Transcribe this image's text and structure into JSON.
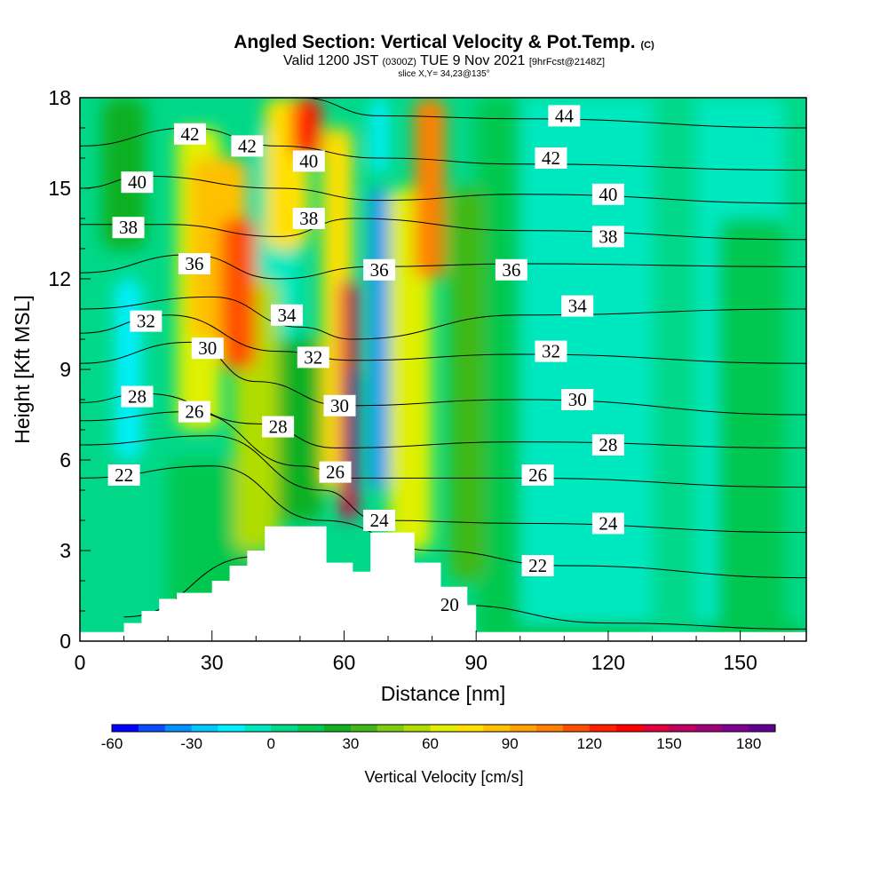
{
  "header": {
    "title": "Angled Section: Vertical Velocity & Pot.Temp.",
    "title_mark": "(C)",
    "valid_prefix": "Valid 1200 JST",
    "valid_utc": "(0300Z)",
    "valid_date": "TUE 9 Nov 2021",
    "forecast_tag": "[9hrFcst@2148Z]",
    "slice": "slice X,Y= 34,23@135°"
  },
  "chart_data": {
    "type": "heatmap",
    "title": "Angled Section: Vertical Velocity & Pot.Temp.",
    "xlabel": "Distance [nm]",
    "ylabel": "Height [Kft MSL]",
    "xlim": [
      0,
      165
    ],
    "ylim": [
      0,
      18
    ],
    "xticks": [
      0,
      30,
      60,
      90,
      120,
      150
    ],
    "yticks": [
      0,
      3,
      6,
      9,
      12,
      15,
      18
    ],
    "grid": false,
    "colorbar": {
      "label": "Vertical Velocity [cm/s]",
      "min": -60,
      "max": 190,
      "step": 10,
      "tick_values": [
        -60,
        -30,
        0,
        30,
        60,
        90,
        120,
        150,
        180
      ],
      "colors": [
        "#0000ff",
        "#0a4cff",
        "#0090ff",
        "#00c8ff",
        "#00f0ff",
        "#00e8c0",
        "#00d888",
        "#00c850",
        "#10b020",
        "#40b818",
        "#80cc10",
        "#b0dc00",
        "#e0f000",
        "#ffe000",
        "#ffc000",
        "#ffa000",
        "#ff8000",
        "#ff5000",
        "#ff2000",
        "#ff0000",
        "#e00040",
        "#c00060",
        "#a00078",
        "#800090",
        "#600090"
      ]
    },
    "velocity_cells": [
      {
        "x": [
          8,
          14
        ],
        "y": [
          6,
          12
        ],
        "value": -20
      },
      {
        "x": [
          40,
          50
        ],
        "y": [
          10,
          17
        ],
        "value": -10
      },
      {
        "x": [
          66,
          70
        ],
        "y": [
          5,
          15
        ],
        "value": -35
      },
      {
        "x": [
          66,
          70
        ],
        "y": [
          15.5,
          18
        ],
        "value": -20
      },
      {
        "x": [
          100,
          160
        ],
        "y": [
          0,
          18
        ],
        "value": -5
      },
      {
        "x": [
          90,
          165
        ],
        "y": [
          0,
          0.6
        ],
        "value": 10
      },
      {
        "x": [
          130,
          140
        ],
        "y": [
          0,
          18
        ],
        "value": 5
      },
      {
        "x": [
          145,
          160
        ],
        "y": [
          0,
          14
        ],
        "value": 10
      },
      {
        "x": [
          5,
          15
        ],
        "y": [
          13,
          18
        ],
        "value": 20
      },
      {
        "x": [
          20,
          40
        ],
        "y": [
          0,
          6
        ],
        "value": 15
      },
      {
        "x": [
          90,
          100
        ],
        "y": [
          0,
          18
        ],
        "value": 15
      },
      {
        "x": [
          40,
          55
        ],
        "y": [
          4,
          10
        ],
        "value": 20
      },
      {
        "x": [
          84,
          92
        ],
        "y": [
          2,
          15
        ],
        "value": 30
      },
      {
        "x": [
          35,
          45
        ],
        "y": [
          3,
          12
        ],
        "value": 50
      },
      {
        "x": [
          70,
          80
        ],
        "y": [
          3,
          15
        ],
        "value": 60
      },
      {
        "x": [
          22,
          32
        ],
        "y": [
          7,
          17
        ],
        "value": 60
      },
      {
        "x": [
          55,
          62
        ],
        "y": [
          5,
          17
        ],
        "value": 70
      },
      {
        "x": [
          25,
          38
        ],
        "y": [
          10,
          16
        ],
        "value": 80
      },
      {
        "x": [
          42,
          52
        ],
        "y": [
          13,
          18
        ],
        "value": 75
      },
      {
        "x": [
          76,
          83
        ],
        "y": [
          12,
          18
        ],
        "value": 100
      },
      {
        "x": [
          32,
          40
        ],
        "y": [
          9,
          14
        ],
        "value": 110
      },
      {
        "x": [
          48,
          55
        ],
        "y": [
          16,
          18
        ],
        "value": 120
      },
      {
        "x": [
          59,
          63
        ],
        "y": [
          4,
          12
        ],
        "value": 140
      },
      {
        "x": [
          61,
          63
        ],
        "y": [
          5,
          9
        ],
        "value": 180
      }
    ],
    "terrain": [
      [
        0,
        0.3
      ],
      [
        10,
        0.6
      ],
      [
        14,
        1.0
      ],
      [
        18,
        1.4
      ],
      [
        22,
        1.6
      ],
      [
        30,
        2.0
      ],
      [
        34,
        2.5
      ],
      [
        38,
        3.0
      ],
      [
        42,
        3.8
      ],
      [
        52,
        3.8
      ],
      [
        56,
        2.6
      ],
      [
        62,
        2.3
      ],
      [
        66,
        3.6
      ],
      [
        72,
        3.6
      ],
      [
        76,
        2.6
      ],
      [
        82,
        1.8
      ],
      [
        88,
        1.2
      ],
      [
        90,
        0.3
      ],
      [
        165,
        0.3
      ]
    ],
    "isentropes": [
      {
        "value": 20,
        "points": [
          [
            10,
            0.8
          ],
          [
            40,
            2.8
          ],
          [
            60,
            2.2
          ],
          [
            85,
            1.2
          ],
          [
            120,
            0.6
          ],
          [
            165,
            0.4
          ]
        ]
      },
      {
        "value": 22,
        "points": [
          [
            0,
            5.4
          ],
          [
            30,
            5.8
          ],
          [
            55,
            4.0
          ],
          [
            80,
            3.0
          ],
          [
            110,
            2.5
          ],
          [
            165,
            2.1
          ]
        ]
      },
      {
        "value": 24,
        "points": [
          [
            0,
            6.5
          ],
          [
            30,
            6.8
          ],
          [
            55,
            5.0
          ],
          [
            68,
            4.0
          ],
          [
            100,
            3.9
          ],
          [
            165,
            3.6
          ]
        ]
      },
      {
        "value": 26,
        "points": [
          [
            0,
            7.3
          ],
          [
            25,
            7.6
          ],
          [
            50,
            5.8
          ],
          [
            62,
            5.4
          ],
          [
            100,
            5.4
          ],
          [
            165,
            5.1
          ]
        ]
      },
      {
        "value": 28,
        "points": [
          [
            0,
            7.9
          ],
          [
            15,
            8.2
          ],
          [
            40,
            7.2
          ],
          [
            58,
            6.4
          ],
          [
            100,
            6.6
          ],
          [
            165,
            6.4
          ]
        ]
      },
      {
        "value": 30,
        "points": [
          [
            0,
            9.2
          ],
          [
            25,
            9.9
          ],
          [
            40,
            8.6
          ],
          [
            60,
            7.8
          ],
          [
            100,
            8.0
          ],
          [
            165,
            7.5
          ]
        ]
      },
      {
        "value": 32,
        "points": [
          [
            0,
            10.2
          ],
          [
            20,
            10.8
          ],
          [
            45,
            9.6
          ],
          [
            62,
            9.3
          ],
          [
            100,
            9.5
          ],
          [
            165,
            9.2
          ]
        ]
      },
      {
        "value": 34,
        "points": [
          [
            0,
            11.0
          ],
          [
            30,
            11.4
          ],
          [
            50,
            10.4
          ],
          [
            62,
            10.0
          ],
          [
            100,
            10.8
          ],
          [
            165,
            11.0
          ]
        ]
      },
      {
        "value": 36,
        "points": [
          [
            0,
            12.2
          ],
          [
            25,
            12.8
          ],
          [
            45,
            12.0
          ],
          [
            66,
            12.4
          ],
          [
            100,
            12.5
          ],
          [
            165,
            12.4
          ]
        ]
      },
      {
        "value": 38,
        "points": [
          [
            0,
            13.8
          ],
          [
            20,
            13.8
          ],
          [
            45,
            13.4
          ],
          [
            62,
            14.0
          ],
          [
            100,
            13.6
          ],
          [
            165,
            13.3
          ]
        ]
      },
      {
        "value": 40,
        "points": [
          [
            0,
            15.0
          ],
          [
            15,
            15.4
          ],
          [
            45,
            15.0
          ],
          [
            68,
            14.6
          ],
          [
            100,
            14.8
          ],
          [
            165,
            14.5
          ]
        ]
      },
      {
        "value": 42,
        "points": [
          [
            0,
            16.4
          ],
          [
            25,
            17.0
          ],
          [
            45,
            16.4
          ],
          [
            68,
            16.0
          ],
          [
            100,
            15.8
          ],
          [
            165,
            15.6
          ]
        ]
      },
      {
        "value": 44,
        "points": [
          [
            50,
            18.0
          ],
          [
            68,
            17.4
          ],
          [
            100,
            17.3
          ],
          [
            165,
            17.0
          ]
        ]
      }
    ],
    "contour_labels": [
      {
        "text": "42",
        "x": 25,
        "y": 16.8
      },
      {
        "text": "42",
        "x": 38,
        "y": 16.4
      },
      {
        "text": "40",
        "x": 52,
        "y": 15.9
      },
      {
        "text": "44",
        "x": 110,
        "y": 17.4
      },
      {
        "text": "42",
        "x": 107,
        "y": 16.0
      },
      {
        "text": "40",
        "x": 13,
        "y": 15.2
      },
      {
        "text": "40",
        "x": 120,
        "y": 14.8
      },
      {
        "text": "38",
        "x": 11,
        "y": 13.7
      },
      {
        "text": "38",
        "x": 52,
        "y": 14.0
      },
      {
        "text": "38",
        "x": 120,
        "y": 13.4
      },
      {
        "text": "36",
        "x": 26,
        "y": 12.5
      },
      {
        "text": "36",
        "x": 68,
        "y": 12.3
      },
      {
        "text": "36",
        "x": 98,
        "y": 12.3
      },
      {
        "text": "34",
        "x": 47,
        "y": 10.8
      },
      {
        "text": "34",
        "x": 113,
        "y": 11.1
      },
      {
        "text": "32",
        "x": 15,
        "y": 10.6
      },
      {
        "text": "32",
        "x": 53,
        "y": 9.4
      },
      {
        "text": "32",
        "x": 107,
        "y": 9.6
      },
      {
        "text": "30",
        "x": 29,
        "y": 9.7
      },
      {
        "text": "30",
        "x": 59,
        "y": 7.8
      },
      {
        "text": "30",
        "x": 113,
        "y": 8.0
      },
      {
        "text": "28",
        "x": 13,
        "y": 8.1
      },
      {
        "text": "28",
        "x": 45,
        "y": 7.1
      },
      {
        "text": "28",
        "x": 120,
        "y": 6.5
      },
      {
        "text": "26",
        "x": 26,
        "y": 7.6
      },
      {
        "text": "26",
        "x": 58,
        "y": 5.6
      },
      {
        "text": "26",
        "x": 104,
        "y": 5.5
      },
      {
        "text": "24",
        "x": 68,
        "y": 4.0
      },
      {
        "text": "24",
        "x": 120,
        "y": 3.9
      },
      {
        "text": "22",
        "x": 10,
        "y": 5.5
      },
      {
        "text": "22",
        "x": 104,
        "y": 2.5
      },
      {
        "text": "20",
        "x": 84,
        "y": 1.2
      }
    ]
  }
}
